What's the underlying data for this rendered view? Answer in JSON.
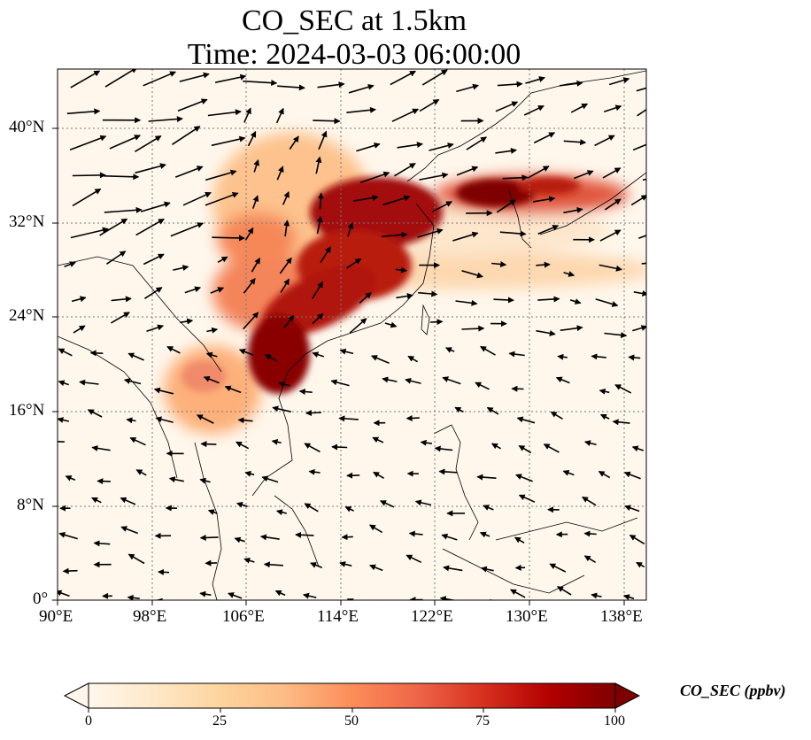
{
  "title_line1": "CO_SEC at 1.5km",
  "title_line2": "Time: 2024-03-03 06:00:00",
  "map": {
    "lon_range": [
      90,
      140
    ],
    "lat_range": [
      0,
      40.0
    ],
    "lon_ticks": [
      "90°E",
      "98°E",
      "106°E",
      "114°E",
      "122°E",
      "130°E",
      "138°E"
    ],
    "lat_ticks": [
      "0°",
      "8°N",
      "16°N",
      "24°N",
      "32°N",
      "40°N"
    ],
    "gridlines": true
  },
  "colorbar": {
    "label": "CO_SEC (ppbv)",
    "ticks": [
      "0",
      "25",
      "50",
      "75",
      "100"
    ],
    "range": [
      0,
      100
    ],
    "extend": "both",
    "colormap": [
      "#fff7ec",
      "#fee8c8",
      "#fdd49e",
      "#fdbb84",
      "#fc8d59",
      "#ef6548",
      "#d7301f",
      "#b30000",
      "#7f0000"
    ]
  },
  "colors": {
    "land_outline": "#000000",
    "grid": "#777777",
    "wind_arrow": "#000000"
  }
}
